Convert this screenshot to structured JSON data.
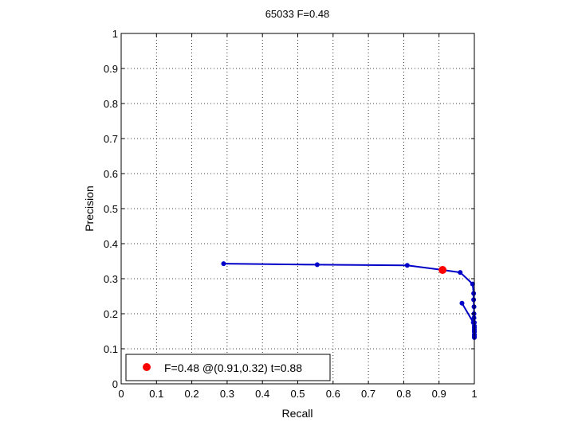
{
  "chart_data": {
    "type": "line",
    "title": "65033 F=0.48",
    "xlabel": "Recall",
    "ylabel": "Precision",
    "xlim": [
      0,
      1
    ],
    "ylim": [
      0,
      1
    ],
    "grid": true,
    "xticks": [
      "0",
      "0.1",
      "0.2",
      "0.3",
      "0.4",
      "0.5",
      "0.6",
      "0.7",
      "0.8",
      "0.9",
      "1"
    ],
    "yticks": [
      "0",
      "0.1",
      "0.2",
      "0.3",
      "0.4",
      "0.5",
      "0.6",
      "0.7",
      "0.8",
      "0.9",
      "1"
    ],
    "series": [
      {
        "color": "#0000c8",
        "points": [
          [
            0.29,
            0.343
          ],
          [
            0.555,
            0.34
          ],
          [
            0.81,
            0.338
          ],
          [
            0.91,
            0.325
          ],
          [
            0.96,
            0.318
          ],
          [
            0.995,
            0.285
          ],
          [
            0.998,
            0.258
          ],
          [
            0.998,
            0.24
          ],
          [
            0.999,
            0.22
          ],
          [
            0.999,
            0.2
          ],
          [
            0.999,
            0.188
          ],
          [
            1.0,
            0.175
          ],
          [
            1.0,
            0.165
          ],
          [
            1.0,
            0.155
          ],
          [
            1.0,
            0.148
          ],
          [
            1.0,
            0.14
          ],
          [
            1.0,
            0.135
          ],
          [
            1.0,
            0.132
          ],
          [
            1.0,
            0.14
          ],
          [
            1.0,
            0.15
          ],
          [
            1.0,
            0.16
          ],
          [
            0.997,
            0.175
          ],
          [
            0.965,
            0.23
          ]
        ]
      }
    ],
    "best_point": {
      "recall": 0.91,
      "precision": 0.325,
      "color": "#ff0000"
    },
    "legend": {
      "position": "bottom-left",
      "text": "F=0.48 @(0.91,0.32) t=0.88"
    }
  }
}
